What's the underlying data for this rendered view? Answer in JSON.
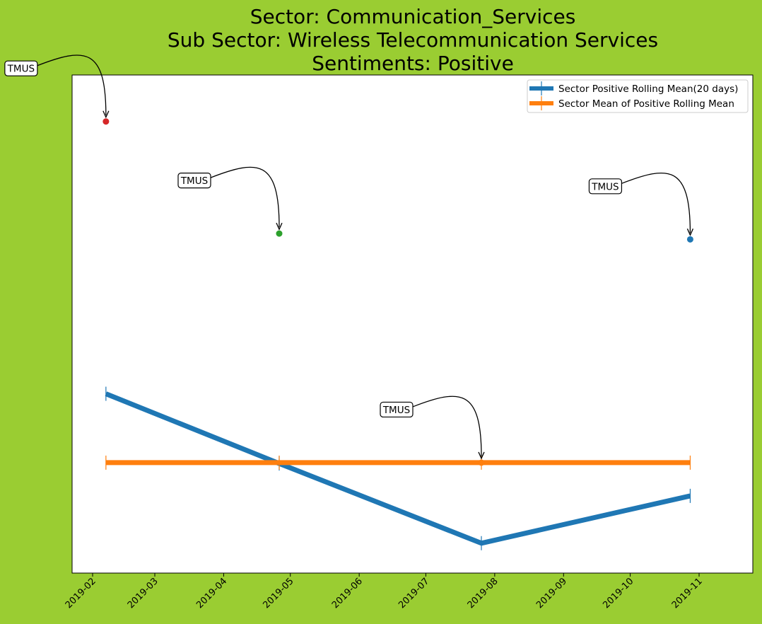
{
  "title": {
    "line1": "Sector:  Communication_Services",
    "line2": "Sub Sector:  Wireless Telecommunication Services",
    "line3": "Sentiments:  Positive"
  },
  "colors": {
    "background": "#9acd32",
    "rolling": "#1f77b4",
    "mean": "#ff7f0e",
    "point_feb": "#d62728",
    "point_apr": "#2ca02c",
    "point_oct": "#1f77b4"
  },
  "chart_data": {
    "type": "line",
    "x_ticks": [
      "2019-02",
      "2019-03",
      "2019-04",
      "2019-05",
      "2019-06",
      "2019-07",
      "2019-08",
      "2019-09",
      "2019-10",
      "2019-11"
    ],
    "y_ticks_visible": false,
    "series": [
      {
        "name": "Sector Positive Rolling Mean(20 days)",
        "x": [
          "2019-02-07",
          "2019-04-26",
          "2019-07-26",
          "2019-10-28"
        ],
        "y": [
          0.366,
          0.282,
          0.186,
          0.243
        ],
        "color": "#1f77b4"
      },
      {
        "name": "Sector Mean of Positive Rolling Mean",
        "x": [
          "2019-02-07",
          "2019-04-26",
          "2019-07-26",
          "2019-10-28"
        ],
        "y": [
          0.283,
          0.283,
          0.283,
          0.283
        ],
        "color": "#ff7f0e"
      }
    ],
    "scatter_points": [
      {
        "x": "2019-02-07",
        "y": 0.694,
        "color": "#d62728",
        "annotation": "TMUS"
      },
      {
        "x": "2019-04-26",
        "y": 0.559,
        "color": "#2ca02c",
        "annotation": "TMUS"
      },
      {
        "x": "2019-07-26",
        "y": 0.283,
        "color": "#ff7f0e",
        "annotation": "TMUS"
      },
      {
        "x": "2019-10-28",
        "y": 0.552,
        "color": "#1f77b4",
        "annotation": "TMUS"
      }
    ],
    "legend": {
      "placement": "upper right",
      "entries": [
        "Sector Positive Rolling Mean(20 days)",
        "Sector Mean of Positive Rolling Mean"
      ]
    },
    "grid": false
  }
}
